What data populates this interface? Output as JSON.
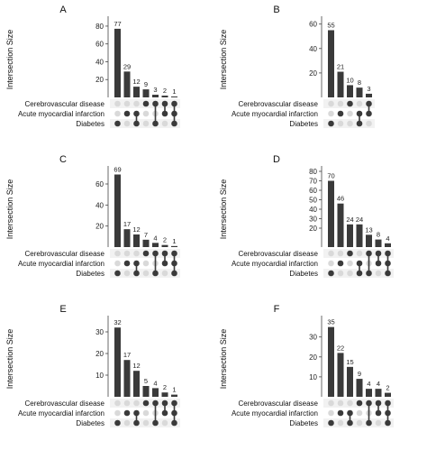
{
  "chart_data": [
    {
      "panel": "A",
      "type": "bar",
      "ylabel": "Intersection Size",
      "yticks": [
        20,
        40,
        60,
        80
      ],
      "ylim": [
        0,
        85
      ],
      "sets": [
        "Cerebrovascular disease",
        "Acute myocardial infarction",
        "Diabetes"
      ],
      "intersections": [
        {
          "value": 77,
          "members": [
            2
          ]
        },
        {
          "value": 29,
          "members": [
            1
          ]
        },
        {
          "value": 12,
          "members": [
            1,
            2
          ]
        },
        {
          "value": 9,
          "members": [
            0
          ]
        },
        {
          "value": 3,
          "members": [
            0,
            2
          ]
        },
        {
          "value": 2,
          "members": [
            0,
            1
          ]
        },
        {
          "value": 1,
          "members": [
            0,
            1,
            2
          ]
        }
      ]
    },
    {
      "panel": "B",
      "type": "bar",
      "ylabel": "Intersection Size",
      "yticks": [
        20,
        40,
        60
      ],
      "ylim": [
        0,
        62
      ],
      "sets": [
        "Cerebrovascular disease",
        "Acute myocardial infarction",
        "Diabetes"
      ],
      "intersections": [
        {
          "value": 55,
          "members": [
            2
          ]
        },
        {
          "value": 21,
          "members": [
            1
          ]
        },
        {
          "value": 10,
          "members": [
            0
          ]
        },
        {
          "value": 8,
          "members": [
            1,
            2
          ]
        },
        {
          "value": 3,
          "members": [
            0,
            1
          ]
        }
      ]
    },
    {
      "panel": "C",
      "type": "bar",
      "ylabel": "Intersection Size",
      "yticks": [
        20,
        40,
        60
      ],
      "ylim": [
        0,
        72
      ],
      "sets": [
        "Cerebrovascular disease",
        "Acute myocardial infarction",
        "Diabetes"
      ],
      "intersections": [
        {
          "value": 69,
          "members": [
            2
          ]
        },
        {
          "value": 17,
          "members": [
            1
          ]
        },
        {
          "value": 12,
          "members": [
            1,
            2
          ]
        },
        {
          "value": 7,
          "members": [
            0
          ]
        },
        {
          "value": 4,
          "members": [
            0,
            2
          ]
        },
        {
          "value": 2,
          "members": [
            0,
            1
          ]
        },
        {
          "value": 1,
          "members": [
            0,
            1,
            2
          ]
        }
      ]
    },
    {
      "panel": "D",
      "type": "bar",
      "ylabel": "Intersection Size",
      "yticks": [
        20,
        30,
        40,
        50,
        60,
        70,
        80
      ],
      "ylim": [
        0,
        80
      ],
      "sets": [
        "Cerebrovascular disease",
        "Acute myocardial infarction",
        "Diabetes"
      ],
      "intersections": [
        {
          "value": 70,
          "members": [
            2
          ]
        },
        {
          "value": 46,
          "members": [
            1
          ]
        },
        {
          "value": 24,
          "members": [
            0
          ]
        },
        {
          "value": 24,
          "members": [
            1,
            2
          ]
        },
        {
          "value": 13,
          "members": [
            0,
            2
          ]
        },
        {
          "value": 8,
          "members": [
            0,
            1
          ]
        },
        {
          "value": 4,
          "members": [
            0,
            1,
            2
          ]
        }
      ]
    },
    {
      "panel": "E",
      "type": "bar",
      "ylabel": "Intersection Size",
      "yticks": [
        10,
        20,
        30
      ],
      "ylim": [
        0,
        35
      ],
      "sets": [
        "Cerebrovascular disease",
        "Acute myocardial infarction",
        "Diabetes"
      ],
      "intersections": [
        {
          "value": 32,
          "members": [
            2
          ]
        },
        {
          "value": 17,
          "members": [
            1
          ]
        },
        {
          "value": 12,
          "members": [
            1,
            2
          ]
        },
        {
          "value": 5,
          "members": [
            0
          ]
        },
        {
          "value": 4,
          "members": [
            0,
            2
          ]
        },
        {
          "value": 2,
          "members": [
            0,
            1
          ]
        },
        {
          "value": 1,
          "members": [
            0,
            1,
            2
          ]
        }
      ]
    },
    {
      "panel": "F",
      "type": "bar",
      "ylabel": "Intersection Size",
      "yticks": [
        10,
        20,
        30
      ],
      "ylim": [
        0,
        38
      ],
      "sets": [
        "Cerebrovascular disease",
        "Acute myocardial infarction",
        "Diabetes"
      ],
      "intersections": [
        {
          "value": 35,
          "members": [
            2
          ]
        },
        {
          "value": 22,
          "members": [
            1
          ]
        },
        {
          "value": 15,
          "members": [
            1,
            2
          ]
        },
        {
          "value": 9,
          "members": [
            0
          ]
        },
        {
          "value": 4,
          "members": [
            0,
            2
          ]
        },
        {
          "value": 4,
          "members": [
            0,
            1
          ]
        },
        {
          "value": 2,
          "members": [
            0,
            1,
            2
          ]
        }
      ]
    }
  ],
  "colors": {
    "bar": "#3a3a3a",
    "dot_active": "#3a3a3a",
    "dot_inactive": "#d9d9d9",
    "matrix_band": "#f2f2f2",
    "axis": "#444444",
    "text": "#111111"
  }
}
